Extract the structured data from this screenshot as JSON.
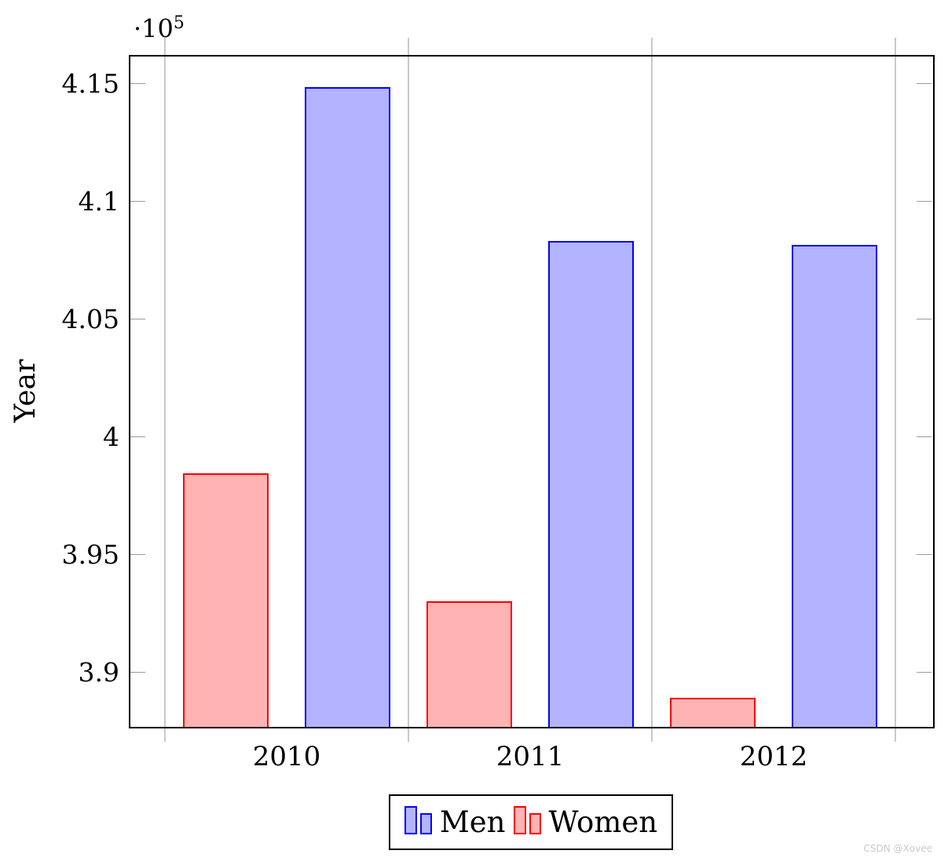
{
  "watermark": "CSDN @Xovee",
  "y_axis": {
    "multiplier_base": "·10",
    "multiplier_exponent": "5",
    "label": "Year"
  },
  "chart_data": {
    "type": "bar",
    "title": "",
    "xlabel": "",
    "ylabel": "Year",
    "y_unit_multiplier": "1e5",
    "categories": [
      "2010",
      "2011",
      "2012"
    ],
    "series": [
      {
        "name": "Men",
        "values": [
          414870,
          408348,
          408171
        ],
        "fill": "#b3b3ff",
        "stroke": "#0000ff"
      },
      {
        "name": "Women",
        "values": [
          398479,
          393049,
          388928
        ],
        "fill": "#ffb3b3",
        "stroke": "#ff0000"
      }
    ],
    "bar_order_in_group": [
      "Women",
      "Men"
    ],
    "ytick_values": [
      390000,
      395000,
      400000,
      405000,
      410000,
      415000
    ],
    "ytick_labels": [
      "3.9",
      "3.95",
      "4",
      "4.05",
      "4.1",
      "4.15"
    ],
    "ylim": [
      387700,
      416233
    ],
    "grid": "vertical lines at category boundaries only",
    "legend_position": "below axis, centered, boxed",
    "legend_entries": [
      "Men",
      "Women"
    ],
    "colors": {
      "axis": "#000000",
      "grid": "#c9c9c9",
      "tick": "#9a9a9a",
      "men_fill": "#b3b3ff",
      "men_stroke": "#0000ff",
      "women_fill": "#ffb3b3",
      "women_stroke": "#ff0000",
      "watermark": "#c9c9c9"
    }
  }
}
